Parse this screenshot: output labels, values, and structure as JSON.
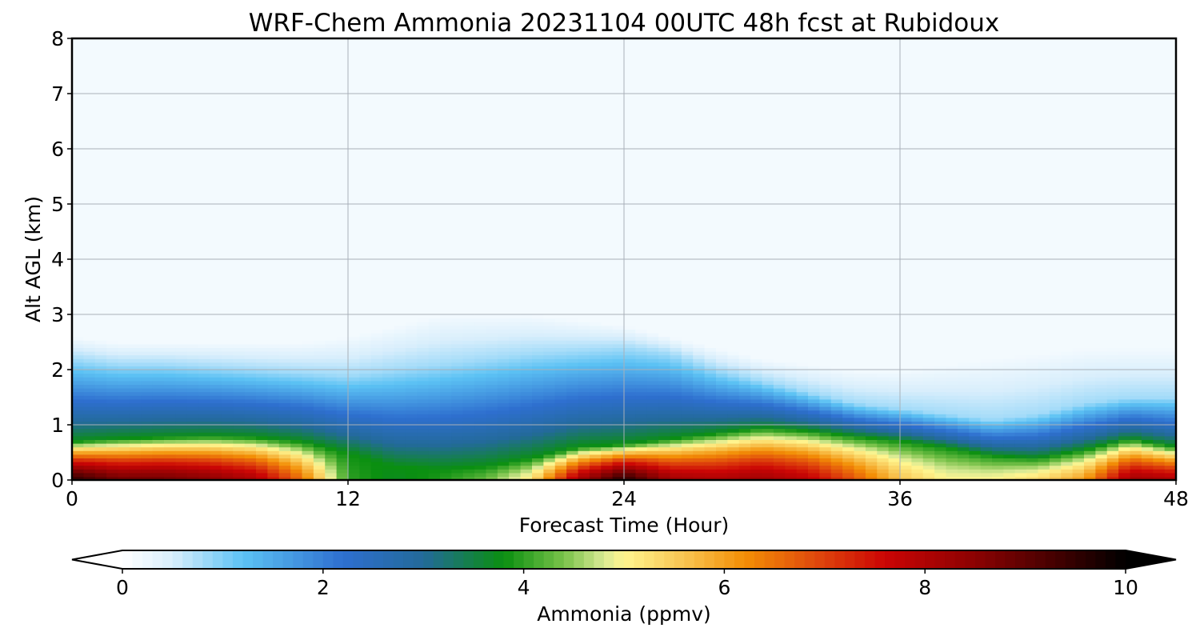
{
  "chart_data": {
    "type": "heatmap",
    "title": "WRF-Chem Ammonia  20231104 00UTC 48h fcst at Rubidoux",
    "xlabel": "Forecast Time (Hour)",
    "ylabel": "Alt AGL (km)",
    "xlim": [
      0,
      48
    ],
    "ylim": [
      0,
      8
    ],
    "xticks": [
      "0",
      "12",
      "24",
      "36",
      "48"
    ],
    "yticks": [
      "0",
      "1",
      "2",
      "3",
      "4",
      "5",
      "6",
      "7",
      "8"
    ],
    "grid": true,
    "colorbar": {
      "label": "Ammonia  (ppmv)",
      "min": 0,
      "max": 10,
      "ticks": [
        "0",
        "2",
        "4",
        "6",
        "8",
        "10"
      ],
      "extend": "both",
      "colors": [
        {
          "v": 0.0,
          "c": "#ffffff"
        },
        {
          "v": 0.5,
          "c": "#d8eefc"
        },
        {
          "v": 1.2,
          "c": "#5cc2f4"
        },
        {
          "v": 2.2,
          "c": "#2e6fcf"
        },
        {
          "v": 3.0,
          "c": "#236a9a"
        },
        {
          "v": 3.8,
          "c": "#0a8f10"
        },
        {
          "v": 4.4,
          "c": "#79c24a"
        },
        {
          "v": 4.8,
          "c": "#d9ea94"
        },
        {
          "v": 5.0,
          "c": "#fff58f"
        },
        {
          "v": 5.6,
          "c": "#f8c451"
        },
        {
          "v": 6.2,
          "c": "#f38f06"
        },
        {
          "v": 6.9,
          "c": "#e04a0c"
        },
        {
          "v": 7.6,
          "c": "#cb0505"
        },
        {
          "v": 8.5,
          "c": "#8c0202"
        },
        {
          "v": 9.4,
          "c": "#3a0000"
        },
        {
          "v": 10.0,
          "c": "#000000"
        }
      ]
    },
    "profiles": {
      "hours": [
        0,
        2,
        4,
        6,
        8,
        10,
        12,
        14,
        16,
        18,
        20,
        22,
        24,
        26,
        28,
        30,
        32,
        34,
        36,
        38,
        40,
        42,
        44,
        46,
        48
      ],
      "surface": [
        9.5,
        8.8,
        8.8,
        8.5,
        8.0,
        6.5,
        4.0,
        3.7,
        3.9,
        4.3,
        5.2,
        8.1,
        9.6,
        8.2,
        8.0,
        8.2,
        7.8,
        6.8,
        5.6,
        5.0,
        5.0,
        5.3,
        6.0,
        8.2,
        8.0
      ],
      "green_top_km": [
        0.7,
        0.75,
        0.78,
        0.8,
        0.78,
        0.7,
        0.5,
        0.25,
        0.2,
        0.25,
        0.4,
        0.6,
        0.65,
        0.75,
        0.85,
        0.95,
        0.9,
        0.8,
        0.72,
        0.6,
        0.45,
        0.4,
        0.55,
        0.75,
        0.6
      ],
      "blue_top_km": [
        2.2,
        2.1,
        2.1,
        2.05,
        2.0,
        1.95,
        1.9,
        2.0,
        2.1,
        2.2,
        2.3,
        2.35,
        2.4,
        2.3,
        2.0,
        1.8,
        1.6,
        1.4,
        1.3,
        1.2,
        1.1,
        1.2,
        1.4,
        1.5,
        1.5
      ],
      "haze_top_km": [
        2.6,
        2.5,
        2.5,
        2.5,
        2.5,
        2.5,
        2.6,
        2.8,
        3.0,
        3.0,
        3.0,
        2.9,
        2.8,
        2.6,
        2.4,
        2.2,
        2.1,
        2.0,
        2.0,
        2.1,
        2.2,
        2.3,
        2.4,
        2.4,
        2.4
      ],
      "background": 0.15
    }
  }
}
